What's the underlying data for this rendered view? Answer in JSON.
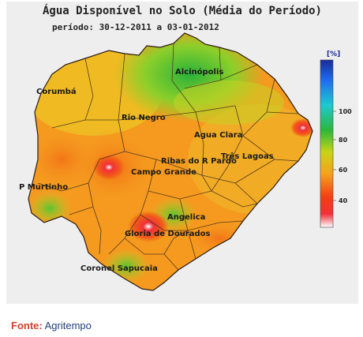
{
  "map": {
    "title": "Água Disponível no Solo (Média do Período)",
    "period": "período: 30-12-2011 a 03-01-2012"
  },
  "legend": {
    "unit": "[%]",
    "ticks": [
      "100",
      "80",
      "60",
      "40"
    ]
  },
  "cities": [
    "Corumbá",
    "Alcinópolis",
    "Rio Negro",
    "Agua Clara",
    "Ribas do R Pardo",
    "Três Lagoas",
    "Campo Grande",
    "P Murtinho",
    "Angelica",
    "Gloria de Dourados",
    "Coronel Sapucaia"
  ],
  "caption": {
    "label": "Fonte:",
    "source": "Agritempo"
  },
  "colors": {
    "wet": "#2ab23a",
    "moist": "#c8d41a",
    "medium": "#f5a021",
    "dry": "#f05a16",
    "very_dry": "#ffffff"
  }
}
